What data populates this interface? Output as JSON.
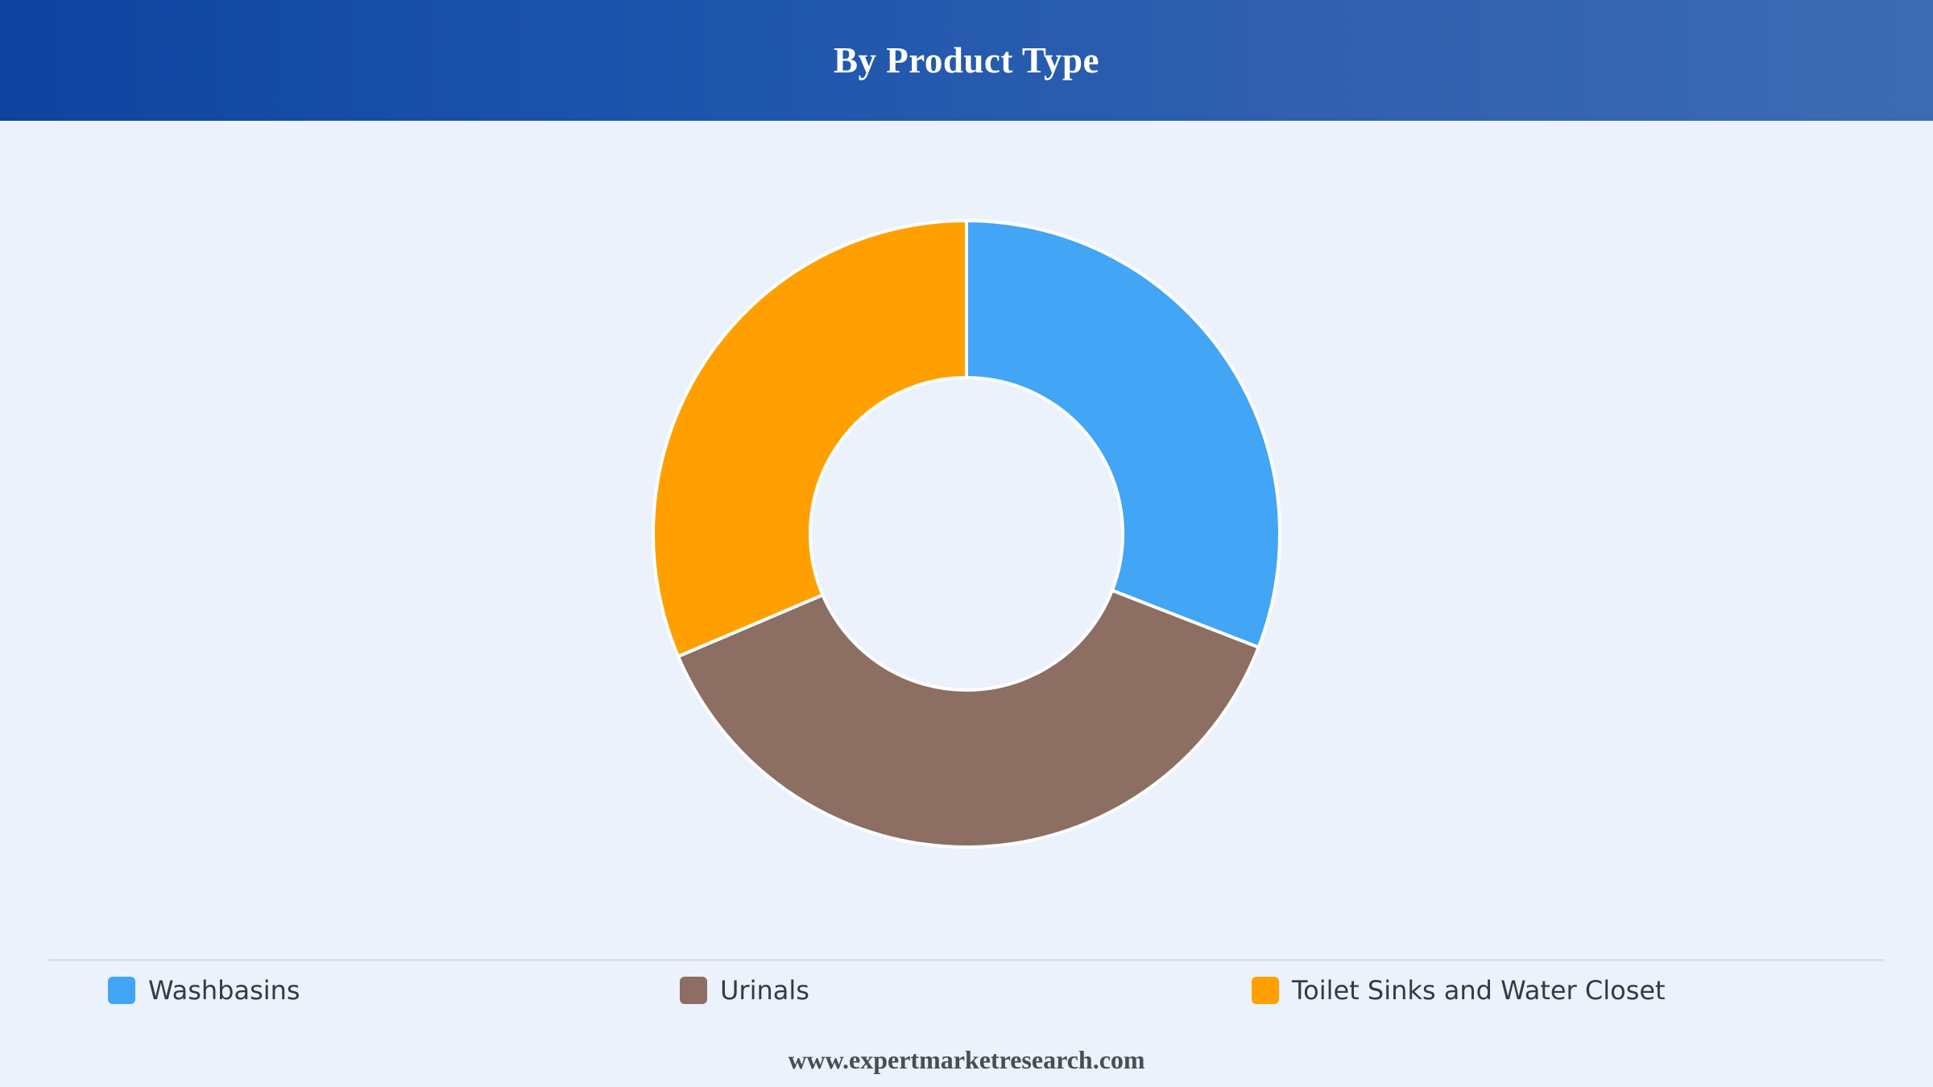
{
  "header": {
    "title": "By Product Type"
  },
  "chart_data": {
    "type": "pie",
    "variant": "donut",
    "categories": [
      "Washbasins",
      "Urinals",
      "Toilet Sinks and Water Closet"
    ],
    "values": [
      30.9,
      37.7,
      31.4
    ],
    "unit": "%",
    "colors": [
      "#42a5f5",
      "#8d6e63",
      "#ffa000"
    ],
    "slice_border_color": "#ffffff",
    "legend_position": "bottom"
  },
  "legend": {
    "items": [
      {
        "label": "Washbasins",
        "color": "#42a5f5"
      },
      {
        "label": "Urinals",
        "color": "#8d6e63"
      },
      {
        "label": "Toilet Sinks and Water Closet",
        "color": "#ffa000"
      }
    ]
  },
  "footer": {
    "text": "www.expertmarketresearch.com"
  }
}
